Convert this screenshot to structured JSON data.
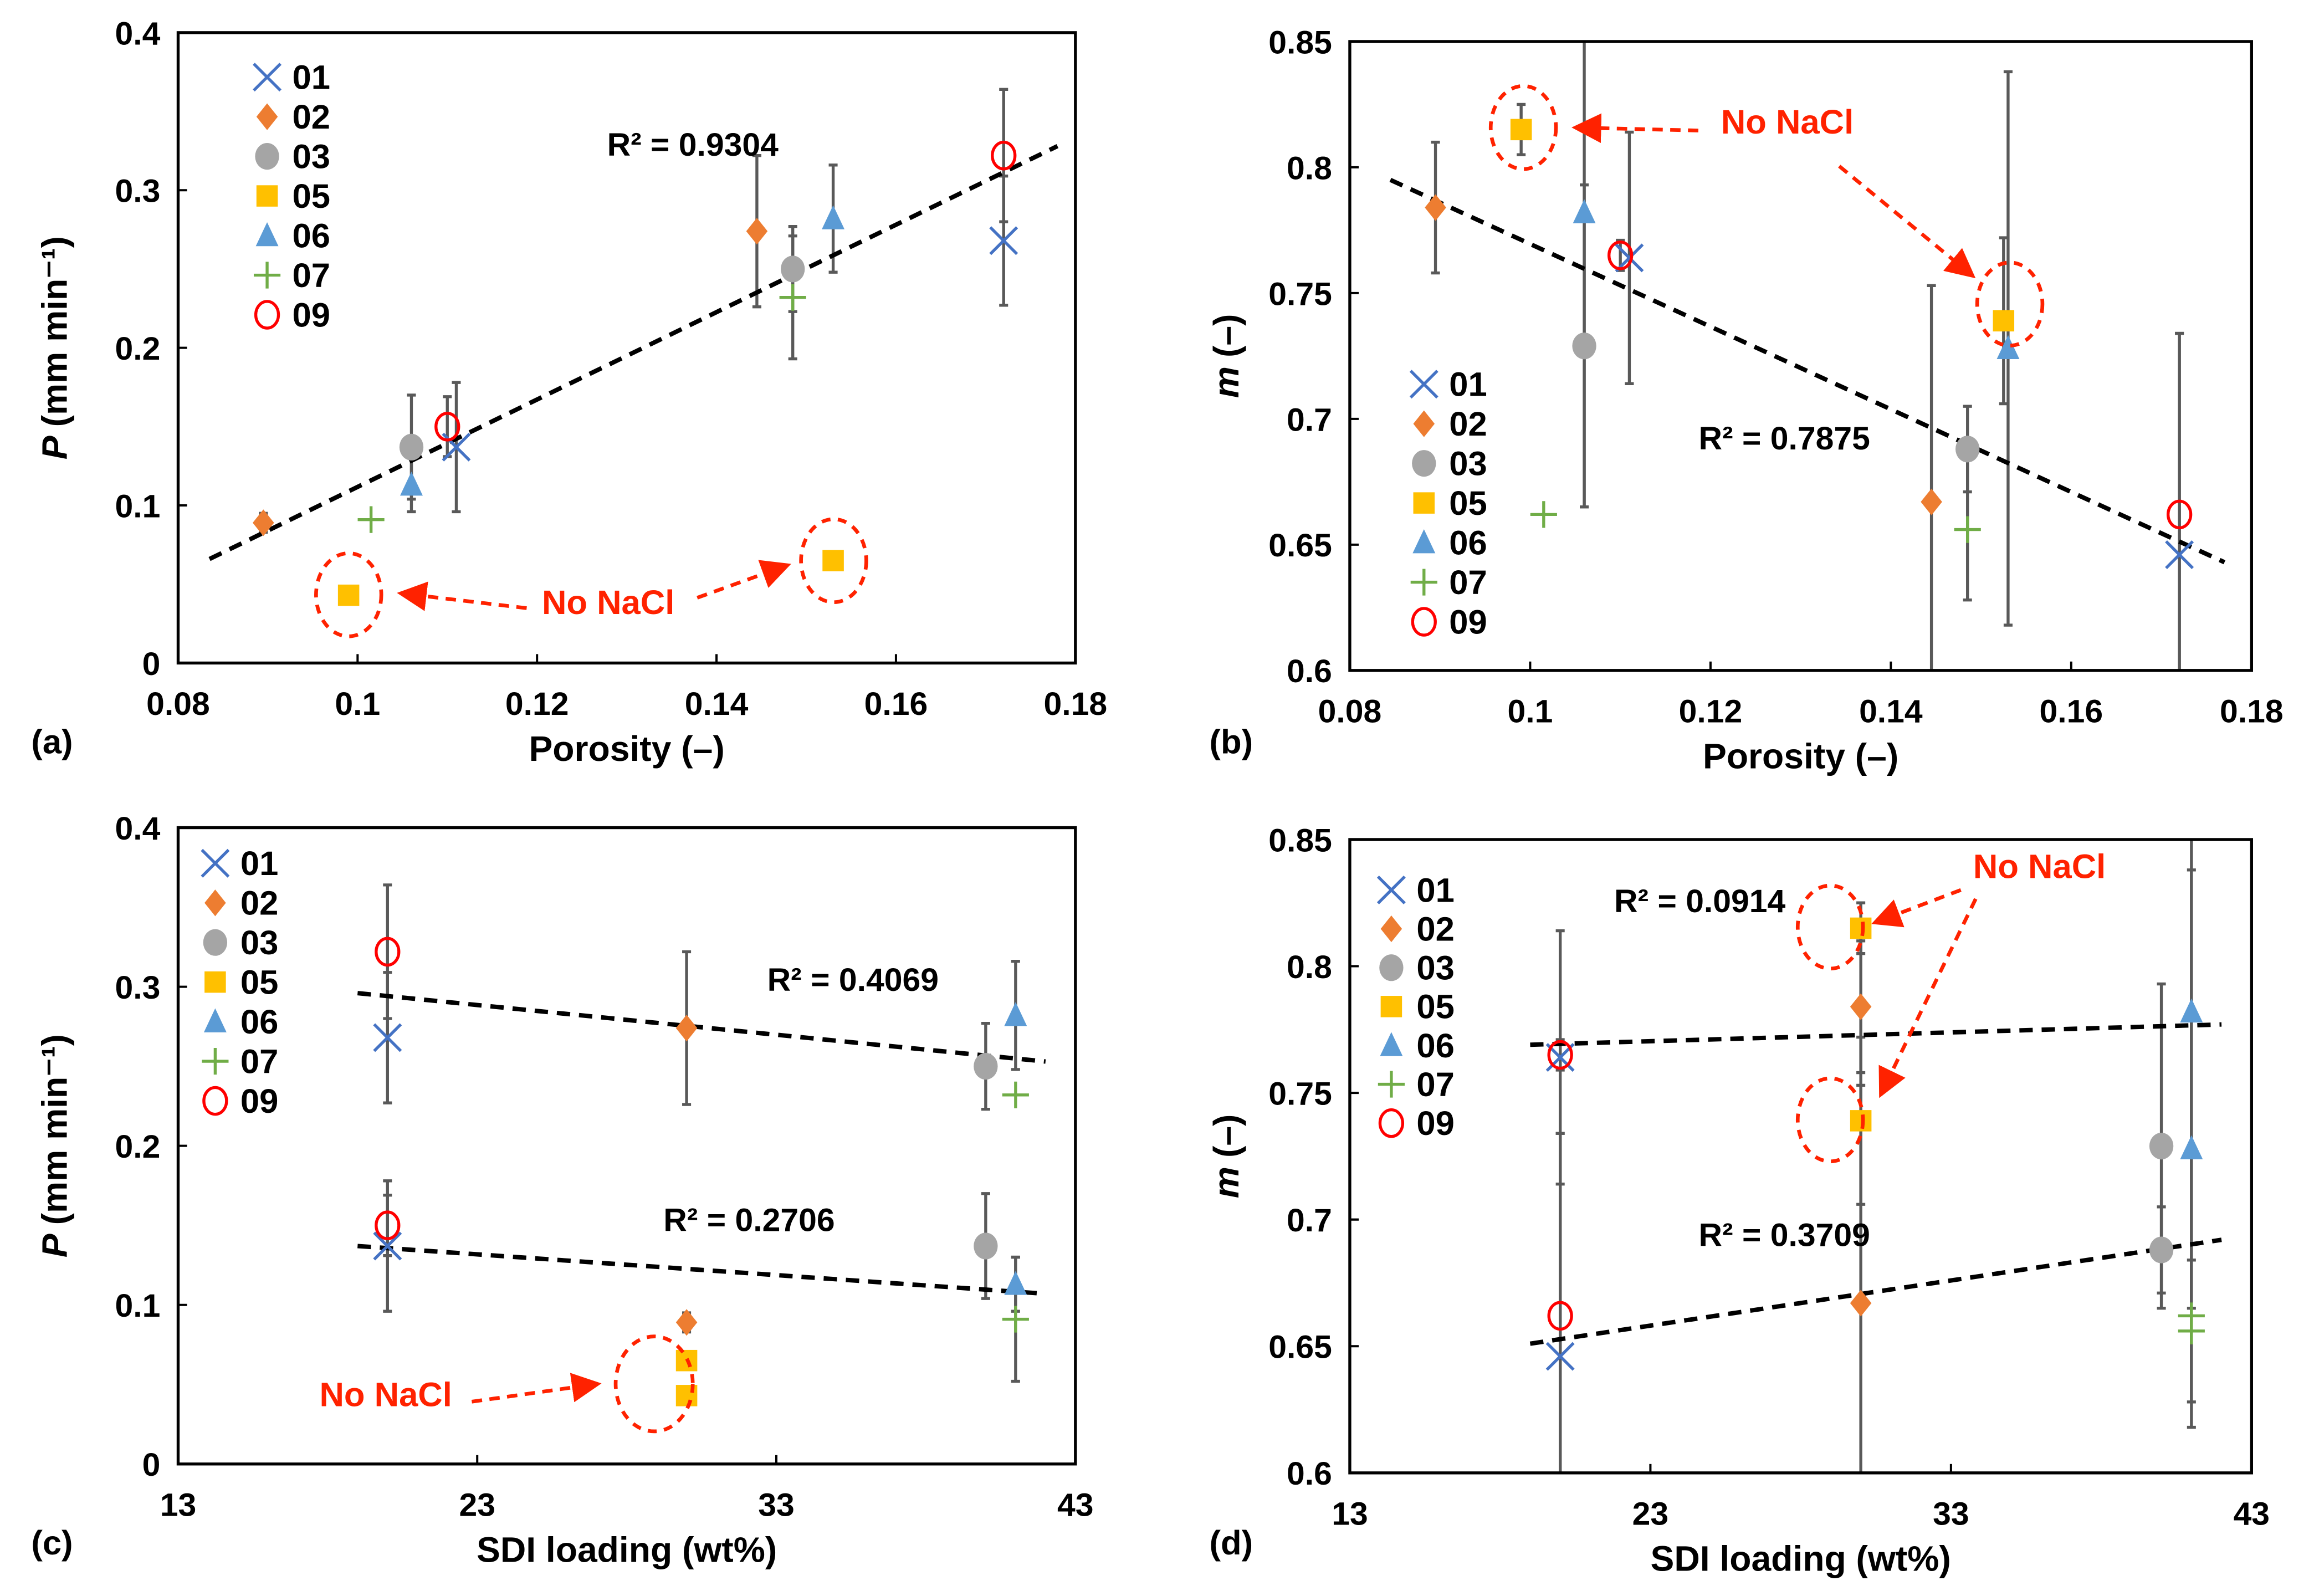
{
  "chart_data": [
    {
      "type": "scatter",
      "panel_label": "(a)",
      "xlabel": "Porosity (–)",
      "ylabel_var": "P",
      "ylabel_unit": "(mm min⁻¹)",
      "xlim": [
        0.08,
        0.18
      ],
      "ylim": [
        0,
        0.4
      ],
      "xticks": [
        "0.08",
        "0.1",
        "0.12",
        "0.14",
        "0.16",
        "0.18"
      ],
      "xtick_values": [
        0.08,
        0.1,
        0.12,
        0.14,
        0.16,
        0.18
      ],
      "yticks": [
        "0",
        "0.1",
        "0.2",
        "0.3",
        "0.4"
      ],
      "ytick_values": [
        0,
        0.1,
        0.2,
        0.3,
        0.4
      ],
      "legend_position": "top-left",
      "series": [
        {
          "name": "01",
          "points": [
            [
              0.111,
              0.137,
              0.041
            ],
            [
              0.172,
              0.268,
              0.041
            ]
          ]
        },
        {
          "name": "02",
          "points": [
            [
              0.0895,
              0.089,
              0.006
            ],
            [
              0.1445,
              0.274,
              0.048
            ]
          ]
        },
        {
          "name": "03",
          "points": [
            [
              0.106,
              0.137,
              0.033
            ],
            [
              0.1485,
              0.25,
              0.027
            ]
          ]
        },
        {
          "name": "05",
          "points": [
            [
              0.099,
              0.043,
              0
            ],
            [
              0.153,
              0.065,
              0
            ]
          ]
        },
        {
          "name": "06",
          "points": [
            [
              0.106,
              0.113,
              0.017
            ],
            [
              0.153,
              0.282,
              0.034
            ]
          ]
        },
        {
          "name": "07",
          "points": [
            [
              0.1015,
              0.091,
              0
            ],
            [
              0.1485,
              0.232,
              0.039
            ]
          ]
        },
        {
          "name": "09",
          "points": [
            [
              0.11,
              0.15,
              0.019
            ],
            [
              0.172,
              0.322,
              0.042
            ]
          ]
        }
      ],
      "trendlines": [
        {
          "from": [
            0.0835,
            0.066
          ],
          "to": [
            0.178,
            0.328
          ],
          "label": "R² = 0.9304"
        }
      ],
      "annotation": "No NaCl"
    },
    {
      "type": "scatter",
      "panel_label": "(b)",
      "xlabel": "Porosity (–)",
      "ylabel_var": "m",
      "ylabel_unit": "(–)",
      "xlim": [
        0.08,
        0.18
      ],
      "ylim": [
        0.6,
        0.85
      ],
      "xticks": [
        "0.08",
        "0.1",
        "0.12",
        "0.14",
        "0.16",
        "0.18"
      ],
      "xtick_values": [
        0.08,
        0.1,
        0.12,
        0.14,
        0.16,
        0.18
      ],
      "yticks": [
        "0.6",
        "0.65",
        "0.7",
        "0.75",
        "0.8",
        "0.85"
      ],
      "ytick_values": [
        0.6,
        0.65,
        0.7,
        0.75,
        0.8,
        0.85
      ],
      "legend_position": "bottom-left",
      "series": [
        {
          "name": "01",
          "points": [
            [
              0.111,
              0.764,
              0.05
            ],
            [
              0.172,
              0.646,
              0.088
            ]
          ]
        },
        {
          "name": "02",
          "points": [
            [
              0.0895,
              0.784,
              0.026
            ],
            [
              0.1445,
              0.667,
              0.086
            ]
          ]
        },
        {
          "name": "03",
          "points": [
            [
              0.106,
              0.729,
              0.064
            ],
            [
              0.1485,
              0.688,
              0.017
            ]
          ]
        },
        {
          "name": "05",
          "points": [
            [
              0.099,
              0.815,
              0.01
            ],
            [
              0.1525,
              0.739,
              0.033
            ]
          ]
        },
        {
          "name": "06",
          "points": [
            [
              0.106,
              0.782,
              0.117
            ],
            [
              0.153,
              0.728,
              0.11
            ]
          ]
        },
        {
          "name": "07",
          "points": [
            [
              0.1015,
              0.662,
              0
            ],
            [
              0.1485,
              0.656,
              0.028
            ]
          ]
        },
        {
          "name": "09",
          "points": [
            [
              0.11,
              0.765,
              0.006
            ],
            [
              0.172,
              0.662,
              0.072
            ]
          ]
        }
      ],
      "trendlines": [
        {
          "from": [
            0.0845,
            0.795
          ],
          "to": [
            0.177,
            0.643
          ],
          "label": "R² = 0.7875"
        }
      ],
      "annotation": "No NaCl"
    },
    {
      "type": "scatter",
      "panel_label": "(c)",
      "xlabel": "SDI loading (wt%)",
      "ylabel_var": "P",
      "ylabel_unit": "(mm min⁻¹)",
      "xlim": [
        13,
        43
      ],
      "ylim": [
        0,
        0.4
      ],
      "xticks": [
        "13",
        "23",
        "33",
        "43"
      ],
      "xtick_values": [
        13,
        23,
        33,
        43
      ],
      "yticks": [
        "0",
        "0.1",
        "0.2",
        "0.3",
        "0.4"
      ],
      "ytick_values": [
        0,
        0.1,
        0.2,
        0.3,
        0.4
      ],
      "legend_position": "top-left",
      "series": [
        {
          "name": "01",
          "points": [
            [
              20,
              0.268,
              0.041
            ],
            [
              20,
              0.137,
              0.041
            ]
          ]
        },
        {
          "name": "02",
          "points": [
            [
              30,
              0.274,
              0.048
            ],
            [
              30,
              0.089,
              0.006
            ]
          ]
        },
        {
          "name": "03",
          "points": [
            [
              40,
              0.25,
              0.027
            ],
            [
              40,
              0.137,
              0.033
            ]
          ]
        },
        {
          "name": "05",
          "points": [
            [
              30,
              0.065,
              0
            ],
            [
              30,
              0.043,
              0
            ]
          ]
        },
        {
          "name": "06",
          "points": [
            [
              41,
              0.282,
              0.034
            ],
            [
              41,
              0.113,
              0.017
            ]
          ]
        },
        {
          "name": "07",
          "points": [
            [
              41,
              0.232,
              0
            ],
            [
              41,
              0.091,
              0.039
            ]
          ]
        },
        {
          "name": "09",
          "points": [
            [
              20,
              0.322,
              0.042
            ],
            [
              20,
              0.15,
              0.019
            ]
          ]
        }
      ],
      "trendlines": [
        {
          "from": [
            19,
            0.296
          ],
          "to": [
            42,
            0.253
          ],
          "label": "R² = 0.4069"
        },
        {
          "from": [
            19,
            0.137
          ],
          "to": [
            42,
            0.107
          ],
          "label": "R² = 0.2706"
        }
      ],
      "annotation": "No NaCl"
    },
    {
      "type": "scatter",
      "panel_label": "(d)",
      "xlabel": "SDI loading (wt%)",
      "ylabel_var": "m",
      "ylabel_unit": "(–)",
      "xlim": [
        13,
        43
      ],
      "ylim": [
        0.6,
        0.85
      ],
      "xticks": [
        "13",
        "23",
        "33",
        "43"
      ],
      "xtick_values": [
        13,
        23,
        33,
        43
      ],
      "yticks": [
        "0.6",
        "0.65",
        "0.7",
        "0.75",
        "0.8",
        "0.85"
      ],
      "ytick_values": [
        0.6,
        0.65,
        0.7,
        0.75,
        0.8,
        0.85
      ],
      "legend_position": "top-left",
      "series": [
        {
          "name": "01",
          "points": [
            [
              20,
              0.764,
              0.05
            ],
            [
              20,
              0.646,
              0.088
            ]
          ]
        },
        {
          "name": "02",
          "points": [
            [
              30,
              0.784,
              0.026
            ],
            [
              30,
              0.667,
              0.086
            ]
          ]
        },
        {
          "name": "03",
          "points": [
            [
              40,
              0.729,
              0.064
            ],
            [
              40,
              0.688,
              0.017
            ]
          ]
        },
        {
          "name": "05",
          "points": [
            [
              30,
              0.815,
              0.01
            ],
            [
              30,
              0.739,
              0.033
            ]
          ]
        },
        {
          "name": "06",
          "points": [
            [
              41,
              0.782,
              0.117
            ],
            [
              41,
              0.728,
              0.11
            ]
          ]
        },
        {
          "name": "07",
          "points": [
            [
              41,
              0.662,
              0
            ],
            [
              41,
              0.656,
              0.028
            ]
          ]
        },
        {
          "name": "09",
          "points": [
            [
              20,
              0.765,
              0.006
            ],
            [
              20,
              0.662,
              0.072
            ]
          ]
        }
      ],
      "trendlines": [
        {
          "from": [
            19,
            0.769
          ],
          "to": [
            42,
            0.777
          ],
          "label": "R² = 0.0914"
        },
        {
          "from": [
            19,
            0.651
          ],
          "to": [
            42,
            0.692
          ],
          "label": "R² = 0.3709"
        }
      ],
      "annotation": "No NaCl"
    }
  ],
  "colors": {
    "01": "#4472C4",
    "02": "#ED7D31",
    "03": "#A5A5A5",
    "05": "#FFC000",
    "06": "#5B9BD5",
    "07": "#70AD47",
    "09": "#FF0000",
    "error_bar": "#595959",
    "annotation": "#FF2200"
  },
  "markers": {
    "01": "x",
    "02": "diamond",
    "03": "circle",
    "05": "square",
    "06": "triangle",
    "07": "plus",
    "09": "open-circle"
  }
}
